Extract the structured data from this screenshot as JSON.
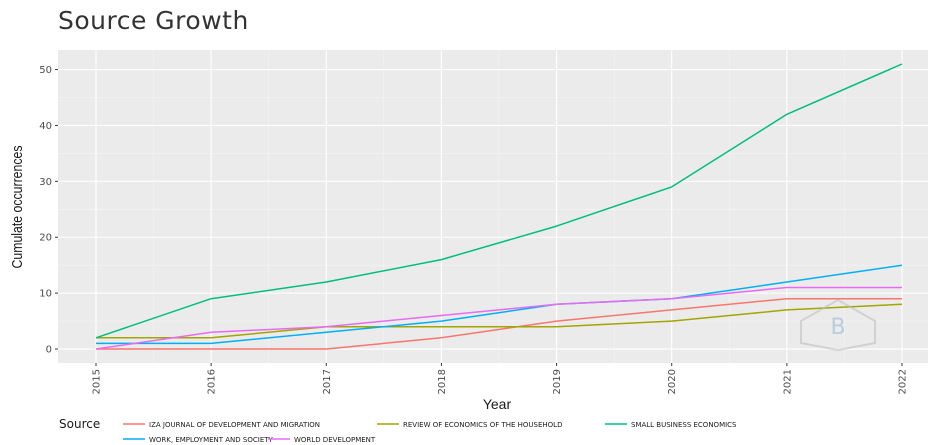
{
  "chart_data": {
    "type": "line",
    "title": "Source Growth",
    "xlabel": "Year",
    "ylabel": "Cumulate occurrences",
    "x": [
      "2015",
      "2016",
      "2017",
      "2018",
      "2019",
      "2020",
      "2021",
      "2022"
    ],
    "xlim": [
      2015,
      2022
    ],
    "ylim": [
      -2.5,
      53.5
    ],
    "yticks": [
      0,
      10,
      20,
      30,
      40,
      50
    ],
    "grid": true,
    "legend_title": "Source",
    "legend_position": "bottom",
    "series": [
      {
        "name": "IZA JOURNAL OF DEVELOPMENT AND MIGRATION",
        "color": "#F8766D",
        "values": [
          0,
          0,
          0,
          2,
          5,
          7,
          9,
          9
        ]
      },
      {
        "name": "REVIEW OF ECONOMICS OF THE HOUSEHOLD",
        "color": "#A3A500",
        "values": [
          2,
          2,
          4,
          4,
          4,
          5,
          7,
          8
        ]
      },
      {
        "name": "SMALL BUSINESS ECONOMICS",
        "color": "#00BF7D",
        "values": [
          2,
          9,
          12,
          16,
          22,
          29,
          42,
          51
        ]
      },
      {
        "name": "WORK, EMPLOYMENT AND SOCIETY",
        "color": "#00B0F6",
        "values": [
          1,
          1,
          3,
          5,
          8,
          9,
          12,
          15
        ]
      },
      {
        "name": "WORLD DEVELOPMENT",
        "color": "#E76BF3",
        "values": [
          0,
          3,
          4,
          6,
          8,
          9,
          11,
          11
        ]
      }
    ]
  }
}
